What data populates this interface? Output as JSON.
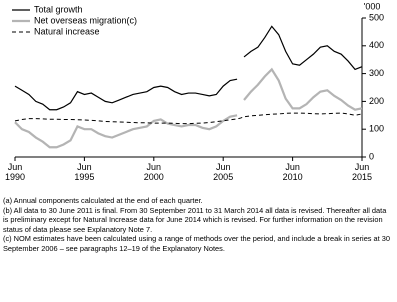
{
  "chart_data": {
    "type": "line",
    "y_unit_label": "'000",
    "x": [
      1990.5,
      1991,
      1991.5,
      1992,
      1992.5,
      1993,
      1993.5,
      1994,
      1994.5,
      1995,
      1995.5,
      1996,
      1996.5,
      1997,
      1997.5,
      1998,
      1998.5,
      1999,
      1999.5,
      2000,
      2000.5,
      2001,
      2001.5,
      2002,
      2002.5,
      2003,
      2003.5,
      2004,
      2004.5,
      2005,
      2005.5,
      2006,
      2006.5,
      2006.75,
      2007,
      2007.5,
      2008,
      2008.5,
      2009,
      2009.5,
      2010,
      2010.5,
      2011,
      2011.5,
      2012,
      2012.5,
      2013,
      2013.5,
      2014,
      2014.5,
      2015,
      2015.5
    ],
    "series": [
      {
        "name": "Total growth",
        "color": "#000000",
        "dash": false,
        "values": [
          255,
          240,
          225,
          200,
          190,
          170,
          170,
          180,
          195,
          235,
          225,
          230,
          215,
          200,
          195,
          205,
          215,
          225,
          230,
          235,
          250,
          255,
          250,
          235,
          225,
          230,
          230,
          225,
          220,
          225,
          255,
          275,
          280,
          null,
          360,
          380,
          395,
          430,
          470,
          440,
          380,
          335,
          330,
          350,
          370,
          395,
          400,
          380,
          370,
          345,
          315,
          325
        ]
      },
      {
        "name": "Net overseas migration(c)",
        "color": "#b4b4b4",
        "dash": false,
        "values": [
          125,
          100,
          90,
          70,
          55,
          35,
          35,
          45,
          60,
          110,
          100,
          100,
          85,
          75,
          70,
          80,
          90,
          100,
          105,
          110,
          130,
          135,
          120,
          115,
          110,
          115,
          115,
          105,
          100,
          110,
          130,
          145,
          150,
          null,
          205,
          235,
          260,
          290,
          315,
          275,
          210,
          175,
          175,
          190,
          215,
          235,
          240,
          220,
          205,
          185,
          170,
          175
        ]
      },
      {
        "name": "Natural increase",
        "color": "#000000",
        "dash": true,
        "values": [
          130,
          135,
          138,
          138,
          137,
          136,
          136,
          135,
          135,
          134,
          133,
          132,
          130,
          128,
          127,
          126,
          125,
          124,
          123,
          123,
          122,
          122,
          122,
          121,
          120,
          120,
          121,
          122,
          124,
          127,
          130,
          134,
          137,
          140,
          145,
          148,
          150,
          152,
          154,
          155,
          157,
          158,
          158,
          157,
          156,
          155,
          156,
          157,
          158,
          155,
          150,
          155
        ]
      }
    ],
    "xlim": [
      1990.5,
      2015.5
    ],
    "xticks": [
      {
        "value": 1990.5,
        "label": "Jun 1990"
      },
      {
        "value": 1995.5,
        "label": "Jun 1995"
      },
      {
        "value": 2000.5,
        "label": "Jun 2000"
      },
      {
        "value": 2005.5,
        "label": "Jun 2005"
      },
      {
        "value": 2010.5,
        "label": "Jun 2010"
      },
      {
        "value": 2015.5,
        "label": "Jun 2015"
      }
    ],
    "ylim": [
      0,
      500
    ],
    "yticks": [
      0,
      100,
      200,
      300,
      400,
      500
    ],
    "notes": [
      "(a) Annual components calculated at the end of each quarter.",
      "(b) All data to 30 June 2011 is final. From 30 September 2011 to 31 March 2014 all data is revised. Thereafter all data is preliminary except for Natural Increase data for June 2014 which is revised. For further information on the revision status of data please see Explanatory Note 7.",
      "(c) NOM estimates have been calculated using a range of methods over the period, and include a break in series at 30 September 2006 – see paragraphs 12–19 of the Explanatory Notes."
    ]
  }
}
